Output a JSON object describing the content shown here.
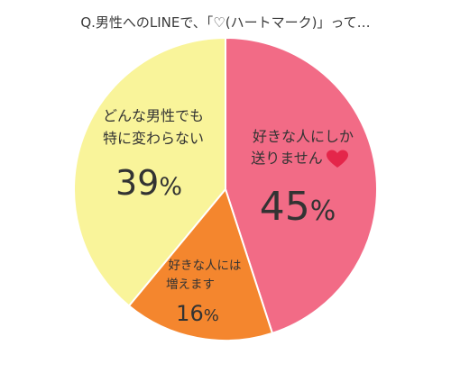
{
  "chart_data": {
    "type": "pie",
    "title": "Q.男性へのLINEで、「♡(ハートマーク)」って…",
    "slices": [
      {
        "label": "好きな人にしか送りません",
        "value": 45,
        "display": "45",
        "unit": "%",
        "color": "#f26b86"
      },
      {
        "label": "好きな人には増えます",
        "value": 16,
        "display": "16",
        "unit": "%",
        "color": "#f4862e"
      },
      {
        "label": "どんな男性でも特に変わらない",
        "value": 39,
        "display": "39",
        "unit": "%",
        "color": "#f9f49a"
      }
    ],
    "label_lines": [
      [
        "好きな人にしか",
        "送りません"
      ],
      [
        "好きな人には",
        "増えます"
      ],
      [
        "どんな男性でも",
        "特に変わらない"
      ]
    ],
    "heart_icon": "heart-icon"
  }
}
